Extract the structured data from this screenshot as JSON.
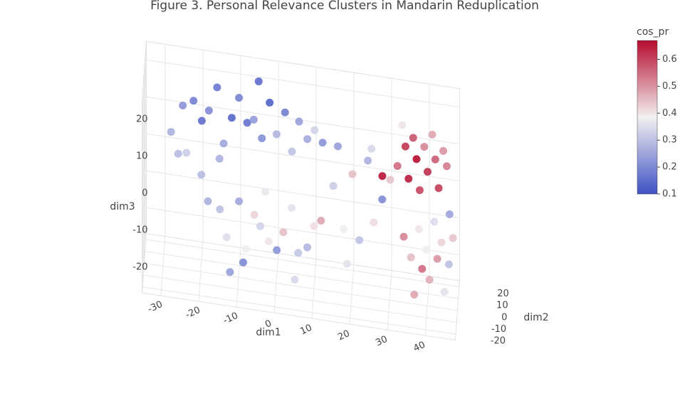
{
  "chart_data": {
    "type": "scatter3d",
    "title": "Figure 3. Personal Relevance Clusters in Mandarin Reduplication",
    "xlabel": "dim1",
    "ylabel": "dim2",
    "zlabel": "dim3",
    "colorbar_title": "cos_pr",
    "x": [
      -28,
      -25,
      -22,
      -20,
      -18,
      -16,
      -14,
      -12,
      -10,
      -8,
      -6,
      -4,
      -2,
      0,
      2,
      4,
      6,
      8,
      -26,
      -24,
      -15,
      -5,
      10,
      12,
      -18,
      -15,
      -13,
      -10,
      -8,
      -6,
      -4,
      -2,
      0,
      2,
      4,
      6,
      8,
      -12,
      -3,
      10,
      -20,
      5,
      -9,
      12,
      15,
      18,
      20,
      22,
      24,
      26,
      28,
      19,
      25,
      16,
      32,
      34,
      35,
      36,
      37,
      38,
      39,
      40,
      41,
      42,
      43,
      44,
      30,
      33,
      28,
      45,
      34,
      36,
      38,
      39,
      40,
      41,
      42,
      43,
      44,
      45,
      46,
      47,
      37,
      46
    ],
    "y": [
      5,
      10,
      3,
      12,
      6,
      14,
      2,
      9,
      5,
      13,
      1,
      8,
      11,
      4,
      14,
      7,
      2,
      10,
      0,
      8,
      -2,
      15,
      6,
      12,
      -5,
      2,
      -8,
      5,
      -3,
      8,
      -10,
      0,
      6,
      -6,
      3,
      -9,
      9,
      -12,
      4,
      0,
      7,
      -4,
      10,
      -7,
      5,
      -5,
      8,
      0,
      12,
      -8,
      3,
      -12,
      10,
      14,
      5,
      10,
      2,
      12,
      7,
      0,
      9,
      4,
      14,
      6,
      1,
      11,
      8,
      15,
      4,
      8,
      -10,
      -14,
      -8,
      -16,
      -12,
      -18,
      -6,
      -15,
      -10,
      -20,
      -12,
      -8,
      -20,
      -4
    ],
    "z": [
      8,
      14,
      18,
      10,
      15,
      19,
      8,
      13,
      20,
      11,
      16,
      9,
      18,
      12,
      15,
      7,
      17,
      10,
      4,
      2,
      5,
      22,
      14,
      9,
      -6,
      -10,
      -14,
      -8,
      -18,
      -12,
      -9,
      -16,
      -20,
      -11,
      -7,
      -15,
      -19,
      -22,
      -4,
      -10,
      -3,
      -24,
      -26,
      -6,
      0,
      -8,
      3,
      -12,
      6,
      -4,
      -1,
      -15,
      10,
      8,
      8,
      12,
      6,
      14,
      10,
      4,
      13,
      8,
      15,
      11,
      5,
      12,
      3,
      16,
      5,
      9,
      -6,
      -10,
      -4,
      -12,
      -8,
      -14,
      -2,
      -9,
      -6,
      -16,
      -11,
      -5,
      -18,
      0
    ],
    "values": [
      0.27,
      0.22,
      0.18,
      0.15,
      0.2,
      0.17,
      0.25,
      0.14,
      0.19,
      0.16,
      0.23,
      0.21,
      0.13,
      0.28,
      0.18,
      0.3,
      0.24,
      0.26,
      0.29,
      0.32,
      0.27,
      0.15,
      0.33,
      0.22,
      0.27,
      0.3,
      0.35,
      0.25,
      0.38,
      0.42,
      0.33,
      0.4,
      0.22,
      0.45,
      0.36,
      0.31,
      0.28,
      0.24,
      0.37,
      0.41,
      0.29,
      0.34,
      0.2,
      0.48,
      0.32,
      0.38,
      0.45,
      0.3,
      0.27,
      0.41,
      0.2,
      0.36,
      0.34,
      0.24,
      0.55,
      0.62,
      0.65,
      0.58,
      0.67,
      0.6,
      0.52,
      0.63,
      0.48,
      0.57,
      0.61,
      0.5,
      0.44,
      0.4,
      0.66,
      0.53,
      0.52,
      0.45,
      0.4,
      0.55,
      0.38,
      0.47,
      0.35,
      0.5,
      0.42,
      0.36,
      0.3,
      0.44,
      0.48,
      0.25
    ],
    "xlim": [
      -35,
      48
    ],
    "xticks": [
      -30,
      -20,
      -10,
      0,
      10,
      20,
      30,
      40
    ],
    "ylim": [
      -25,
      25
    ],
    "yticks": [
      -20,
      -10,
      0,
      10,
      20
    ],
    "zlim": [
      -27,
      25
    ],
    "zticks": [
      -20,
      -10,
      0,
      10,
      20
    ],
    "clim": [
      0.1,
      0.67
    ],
    "cticks": [
      0.1,
      0.2,
      0.3,
      0.4,
      0.5,
      0.6
    ],
    "colorscale": [
      "#3f51c4",
      "#f2f0f0",
      "#b50c2e"
    ],
    "grid": true
  }
}
